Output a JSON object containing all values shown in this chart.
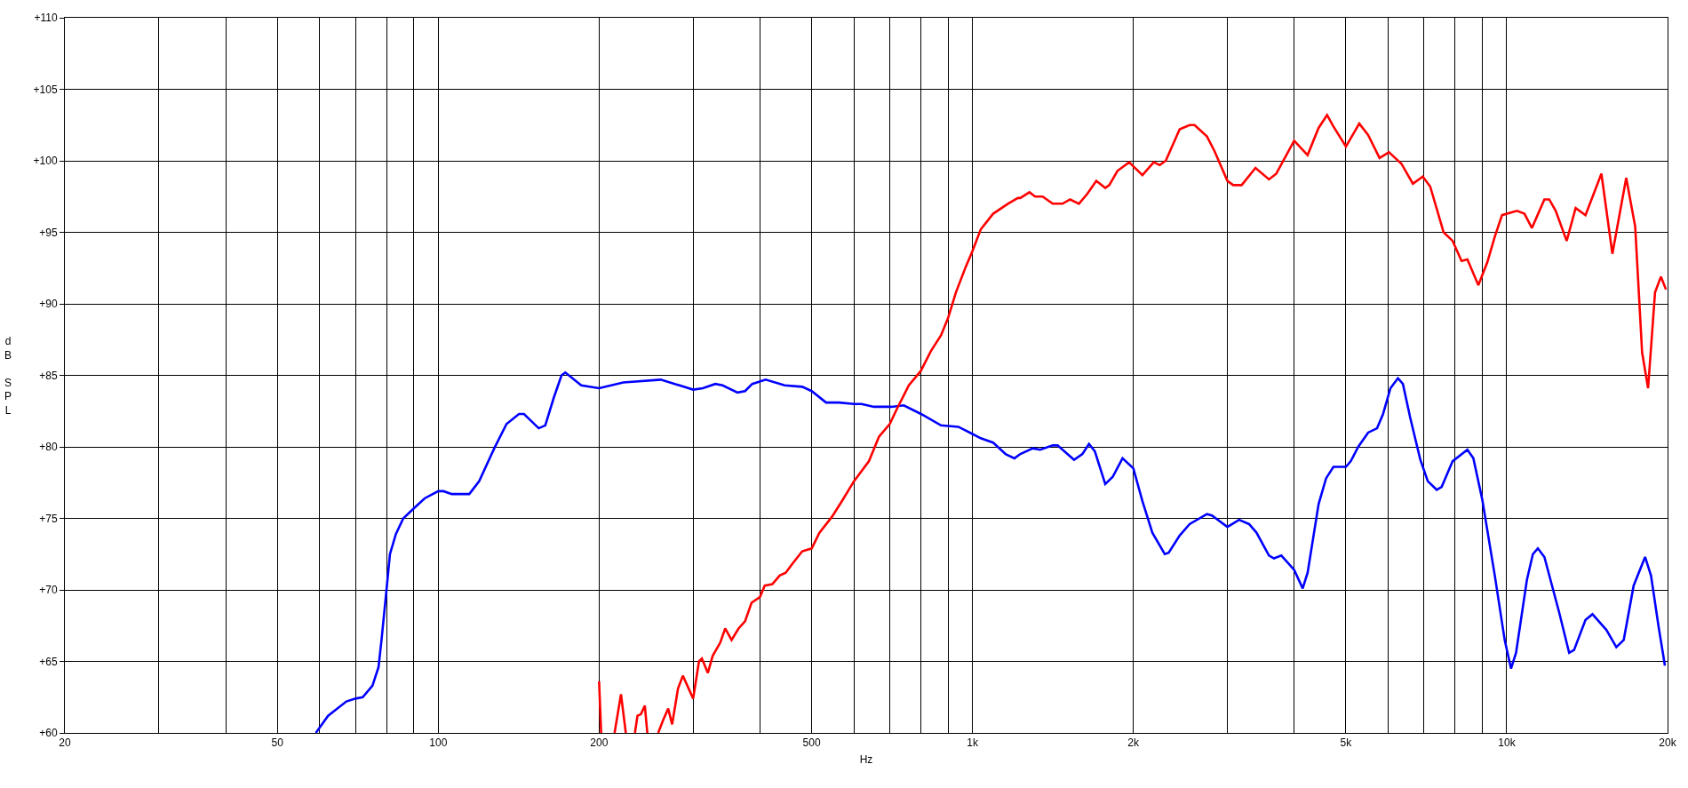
{
  "chart_data": {
    "type": "line",
    "xlabel": "Hz",
    "ylabel": "dB SPL",
    "log": "x",
    "grid": true,
    "line_style": "solid",
    "marker": "none",
    "xlim": [
      20,
      20000
    ],
    "xticks": [
      {
        "value": 20,
        "label": "20"
      },
      {
        "value": 30,
        "label": null
      },
      {
        "value": 40,
        "label": null
      },
      {
        "value": 50,
        "label": "50"
      },
      {
        "value": 60,
        "label": null
      },
      {
        "value": 70,
        "label": null
      },
      {
        "value": 80,
        "label": null
      },
      {
        "value": 90,
        "label": null
      },
      {
        "value": 100,
        "label": "100"
      },
      {
        "value": 200,
        "label": "200"
      },
      {
        "value": 300,
        "label": null
      },
      {
        "value": 400,
        "label": null
      },
      {
        "value": 500,
        "label": "500"
      },
      {
        "value": 600,
        "label": null
      },
      {
        "value": 700,
        "label": null
      },
      {
        "value": 800,
        "label": null
      },
      {
        "value": 900,
        "label": null
      },
      {
        "value": 1000,
        "label": "1k"
      },
      {
        "value": 2000,
        "label": "2k"
      },
      {
        "value": 3000,
        "label": null
      },
      {
        "value": 4000,
        "label": null
      },
      {
        "value": 5000,
        "label": "5k"
      },
      {
        "value": 6000,
        "label": null
      },
      {
        "value": 7000,
        "label": null
      },
      {
        "value": 8000,
        "label": null
      },
      {
        "value": 9000,
        "label": null
      },
      {
        "value": 10000,
        "label": "10k"
      },
      {
        "value": 20000,
        "label": "20k"
      }
    ],
    "ylim": [
      60,
      110
    ],
    "yticks": [
      {
        "value": 60,
        "label": "+60"
      },
      {
        "value": 65,
        "label": "+65"
      },
      {
        "value": 70,
        "label": "+70"
      },
      {
        "value": 75,
        "label": "+75"
      },
      {
        "value": 80,
        "label": "+80"
      },
      {
        "value": 85,
        "label": "+85"
      },
      {
        "value": 90,
        "label": "+90"
      },
      {
        "value": 95,
        "label": "+95"
      },
      {
        "value": 100,
        "label": "+100"
      },
      {
        "value": 105,
        "label": "+105"
      },
      {
        "value": 110,
        "label": "+110"
      }
    ],
    "series": [
      {
        "color": "#0000ff",
        "x": [
          59,
          62.2,
          67.3,
          70,
          72.2,
          75.3,
          77.3,
          78.3,
          80,
          81.2,
          83.3,
          86,
          90,
          94.3,
          100,
          102.3,
          106,
          114.3,
          119.3,
          127.3,
          134.2,
          141.6,
          144.7,
          154.2,
          158.6,
          164.4,
          170.1,
          172.9,
          185.2,
          200,
          222,
          260.8,
          300,
          312.8,
          330,
          340.6,
          363.2,
          375.2,
          387,
          410,
          445,
          480,
          500,
          532,
          563,
          600,
          620,
          654,
          705,
          743.6,
          801,
          873,
          941,
          1000,
          1036,
          1093,
          1153,
          1198,
          1229,
          1297,
          1339,
          1413,
          1443,
          1549,
          1606,
          1652,
          1694,
          1772,
          1830,
          1909,
          2000,
          2080,
          2171,
          2290,
          2329,
          2442,
          2549,
          2747,
          2806,
          3000,
          3155,
          3294,
          3401,
          3589,
          3667,
          3785,
          4000,
          4150,
          4239,
          4445,
          4590,
          4738,
          5000,
          5106,
          5272,
          5502,
          5718,
          5868,
          6058,
          6256,
          6392,
          6600,
          6890,
          7115,
          7394,
          7554,
          7920,
          8440,
          8660,
          9000,
          9498,
          9911,
          10186,
          10408,
          10908,
          11192,
          11436,
          11762,
          12540,
          13085,
          13366,
          14042,
          14470,
          15366,
          16036,
          16557,
          17280,
          18152,
          18622,
          19228,
          19772
        ],
        "values": [
          60,
          61.2,
          62.2,
          62.4,
          62.5,
          63.3,
          64.6,
          66.5,
          70,
          72.5,
          73.9,
          75,
          75.7,
          76.4,
          76.9,
          76.9,
          76.7,
          76.7,
          77.6,
          79.9,
          81.6,
          82.3,
          82.3,
          81.3,
          81.5,
          83.4,
          85,
          85.2,
          84.3,
          84.1,
          84.5,
          84.7,
          84,
          84.1,
          84.4,
          84.3,
          83.8,
          83.9,
          84.4,
          84.7,
          84.3,
          84.2,
          83.9,
          83.1,
          83.1,
          83,
          83,
          82.8,
          82.8,
          82.9,
          82.3,
          81.5,
          81.4,
          80.9,
          80.6,
          80.3,
          79.5,
          79.2,
          79.5,
          79.9,
          79.8,
          80.1,
          80.1,
          79.1,
          79.5,
          80.2,
          79.7,
          77.4,
          77.9,
          79.2,
          78.5,
          76.2,
          74,
          72.5,
          72.6,
          73.8,
          74.6,
          75.3,
          75.2,
          74.4,
          74.9,
          74.6,
          74,
          72.4,
          72.2,
          72.4,
          71.4,
          70.1,
          71.2,
          76,
          77.8,
          78.6,
          78.6,
          79,
          80,
          81,
          81.3,
          82.3,
          84.1,
          84.8,
          84.4,
          82,
          79.1,
          77.6,
          77,
          77.2,
          79,
          79.8,
          79.2,
          76.3,
          71,
          66.5,
          64.5,
          65.6,
          70.7,
          72.5,
          72.9,
          72.3,
          68.4,
          65.6,
          65.8,
          67.9,
          68.3,
          67.2,
          66,
          66.5,
          70.3,
          72.3,
          71,
          67.5,
          64.7
        ]
      },
      {
        "color": "#ff0000",
        "x": [
          200,
          201.8,
          205,
          213.8,
          219.8,
          224.4,
          229,
          233.4,
          236,
          239.4,
          243.6,
          246.2,
          252,
          258,
          263.6,
          269.4,
          274,
          281,
          287,
          300,
          307.6,
          311.5,
          319.6,
          326.4,
          337,
          344.4,
          354,
          364.8,
          375.2,
          385.8,
          400,
          408.4,
          422,
          435.6,
          447,
          459.6,
          480,
          500,
          517,
          545.4,
          569.4,
          600,
          640,
          668,
          700,
          723,
          760,
          800,
          836,
          873,
          900,
          931,
          971.6,
          1000,
          1036,
          1093,
          1165,
          1216,
          1229,
          1278,
          1310,
          1353,
          1413,
          1474,
          1523,
          1582,
          1641,
          1705,
          1772,
          1803,
          1868,
          1964,
          2080,
          2184,
          2241,
          2300,
          2442,
          2549,
          2604,
          2747,
          2836,
          3000,
          3076,
          3190,
          3386,
          3589,
          3704,
          4000,
          4239,
          4445,
          4610,
          4738,
          5000,
          5296,
          5502,
          5780,
          6018,
          6350,
          6672,
          6964,
          7190,
          7618,
          7920,
          8230,
          8440,
          8848,
          9196,
          9498,
          9800,
          10452,
          10794,
          11146,
          11762,
          12010,
          12350,
          12948,
          13458,
          14042,
          15038,
          15766,
          16736,
          17396,
          17922,
          18390,
          18948,
          19438,
          19862
        ],
        "values": [
          63.6,
          60,
          null,
          60,
          62.7,
          60,
          null,
          60,
          61.2,
          61.3,
          61.9,
          60,
          null,
          60,
          60.9,
          61.7,
          60.6,
          63.1,
          64,
          62.4,
          65,
          65.2,
          64.2,
          65.4,
          66.3,
          67.3,
          66.5,
          67.3,
          67.8,
          69.1,
          69.5,
          70.3,
          70.4,
          71,
          71.2,
          71.8,
          72.7,
          72.9,
          74,
          75.1,
          76.2,
          77.6,
          79,
          80.7,
          81.6,
          82.7,
          84.3,
          85.3,
          86.7,
          87.8,
          89,
          90.8,
          92.6,
          93.7,
          95.2,
          96.3,
          97,
          97.4,
          97.4,
          97.8,
          97.5,
          97.5,
          97,
          97,
          97.3,
          97,
          97.7,
          98.6,
          98.1,
          98.3,
          99.3,
          99.9,
          99,
          99.9,
          99.7,
          100,
          102.2,
          102.5,
          102.5,
          101.7,
          100.7,
          98.6,
          98.3,
          98.3,
          99.5,
          98.7,
          99.1,
          101.4,
          100.4,
          102.3,
          103.2,
          102.4,
          101,
          102.6,
          101.8,
          100.2,
          100.6,
          99.8,
          98.4,
          98.9,
          98.2,
          95,
          94.4,
          93,
          93.1,
          91.3,
          92.9,
          94.7,
          96.2,
          96.5,
          96.3,
          95.3,
          97.3,
          97.3,
          96.5,
          94.4,
          96.7,
          96.2,
          99.1,
          93.5,
          98.8,
          95.4,
          86.6,
          84.1,
          90.8,
          91.9,
          91
        ]
      }
    ]
  }
}
